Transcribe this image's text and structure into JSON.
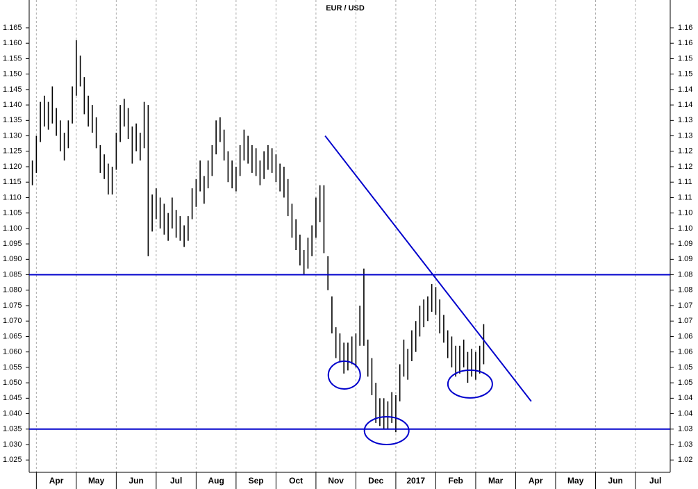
{
  "chart_data": {
    "type": "highlow",
    "title": "EUR / USD",
    "color": "#000000",
    "line_color": "#0000cc",
    "grid": true,
    "xlim": [
      -0.18,
      15.87
    ],
    "ylim": [
      1.021,
      1.174
    ],
    "y2lim": [
      1.021,
      1.174
    ],
    "xticks": [
      {
        "value": 0,
        "label": "Apr"
      },
      {
        "value": 1,
        "label": "May"
      },
      {
        "value": 2,
        "label": "Jun"
      },
      {
        "value": 3,
        "label": "Jul"
      },
      {
        "value": 4,
        "label": "Aug"
      },
      {
        "value": 5,
        "label": "Sep"
      },
      {
        "value": 6,
        "label": "Oct"
      },
      {
        "value": 7,
        "label": "Nov"
      },
      {
        "value": 8,
        "label": "Dec"
      },
      {
        "value": 9,
        "label": "2017"
      },
      {
        "value": 10,
        "label": "Feb"
      },
      {
        "value": 11,
        "label": "Mar"
      },
      {
        "value": 12,
        "label": "Apr"
      },
      {
        "value": 13,
        "label": "May"
      },
      {
        "value": 14,
        "label": "Jun"
      },
      {
        "value": 15,
        "label": "Jul"
      }
    ],
    "yticks": [
      1.165,
      {
        "value": 1.16,
        "label": "1.160"
      },
      1.155,
      {
        "value": 1.15,
        "label": "1.150"
      },
      1.145,
      {
        "value": 1.14,
        "label": "1.140"
      },
      1.135,
      {
        "value": 1.13,
        "label": "1.130"
      },
      1.125,
      {
        "value": 1.12,
        "label": "1.120"
      },
      1.115,
      {
        "value": 1.11,
        "label": "1.110"
      },
      1.105,
      {
        "value": 1.1,
        "label": "1.100"
      },
      1.095,
      {
        "value": 1.09,
        "label": "1.090"
      },
      1.085,
      {
        "value": 1.08,
        "label": "1.080"
      },
      1.075,
      {
        "value": 1.07,
        "label": "1.070"
      },
      1.065,
      {
        "value": 1.06,
        "label": "1.060"
      },
      1.055,
      {
        "value": 1.05,
        "label": "1.050"
      },
      1.045,
      {
        "value": 1.04,
        "label": "1.040"
      },
      1.035,
      {
        "value": 1.03,
        "label": "1.030"
      },
      1.025
    ],
    "y2ticks": [
      {
        "value": 1.165,
        "label": "1.16"
      },
      1.16,
      {
        "value": 1.155,
        "label": "1.15"
      },
      1.15,
      {
        "value": 1.145,
        "label": "1.14"
      },
      1.14,
      {
        "value": 1.135,
        "label": "1.13"
      },
      1.13,
      {
        "value": 1.125,
        "label": "1.12"
      },
      1.12,
      {
        "value": 1.115,
        "label": "1.11"
      },
      1.11,
      {
        "value": 1.105,
        "label": "1.10"
      },
      {
        "value": 1.1,
        "label": "1.10"
      },
      {
        "value": 1.095,
        "label": "1.09"
      },
      1.09,
      {
        "value": 1.085,
        "label": "1.08"
      },
      1.08,
      {
        "value": 1.075,
        "label": "1.07"
      },
      1.07,
      {
        "value": 1.065,
        "label": "1.06"
      },
      1.06,
      {
        "value": 1.055,
        "label": "1.05"
      },
      1.05,
      {
        "value": 1.045,
        "label": "1.04"
      },
      1.04,
      {
        "value": 1.035,
        "label": "1.03"
      },
      1.03,
      {
        "value": 1.025,
        "label": "1.02"
      }
    ],
    "x": [
      -0.1,
      0,
      0.1,
      0.2,
      0.3,
      0.4,
      0.5,
      0.6,
      0.7,
      0.8,
      0.9,
      1,
      1.1,
      1.2,
      1.3,
      1.4,
      1.5,
      1.6,
      1.7,
      1.8,
      1.9,
      2,
      2.1,
      2.2,
      2.3,
      2.4,
      2.5,
      2.6,
      2.7,
      2.8,
      2.9,
      3,
      3.1,
      3.2,
      3.3,
      3.4,
      3.5,
      3.6,
      3.7,
      3.8,
      3.9,
      4,
      4.1,
      4.2,
      4.3,
      4.4,
      4.5,
      4.6,
      4.7,
      4.8,
      4.9,
      5,
      5.1,
      5.2,
      5.3,
      5.4,
      5.5,
      5.6,
      5.7,
      5.8,
      5.9,
      6,
      6.1,
      6.2,
      6.3,
      6.4,
      6.5,
      6.6,
      6.7,
      6.8,
      6.9,
      7,
      7.1,
      7.2,
      7.3,
      7.4,
      7.5,
      7.6,
      7.7,
      7.8,
      7.9,
      8,
      8.1,
      8.2,
      8.3,
      8.4,
      8.5,
      8.6,
      8.7,
      8.8,
      8.9,
      9,
      9.1,
      9.2,
      9.3,
      9.4,
      9.5,
      9.6,
      9.7,
      9.8,
      9.9,
      10,
      10.1,
      10.2,
      10.3,
      10.4,
      10.5,
      10.6,
      10.7,
      10.8,
      10.9,
      11,
      11.1,
      11.2
    ],
    "high": [
      1.122,
      1.13,
      1.141,
      1.143,
      1.141,
      1.146,
      1.139,
      1.135,
      1.131,
      1.135,
      1.146,
      1.161,
      1.156,
      1.149,
      1.143,
      1.14,
      1.136,
      1.127,
      1.124,
      1.121,
      1.12,
      1.131,
      1.14,
      1.142,
      1.139,
      1.133,
      1.134,
      1.131,
      1.141,
      1.14,
      1.111,
      1.113,
      1.11,
      1.108,
      1.105,
      1.11,
      1.106,
      1.104,
      1.101,
      1.104,
      1.113,
      1.116,
      1.122,
      1.117,
      1.122,
      1.127,
      1.135,
      1.136,
      1.132,
      1.125,
      1.122,
      1.12,
      1.127,
      1.132,
      1.13,
      1.127,
      1.126,
      1.122,
      1.125,
      1.127,
      1.126,
      1.124,
      1.121,
      1.12,
      1.116,
      1.108,
      1.103,
      1.098,
      1.093,
      1.097,
      1.101,
      1.11,
      1.114,
      1.114,
      1.091,
      1.078,
      1.068,
      1.066,
      1.063,
      1.063,
      1.065,
      1.066,
      1.075,
      1.087,
      1.064,
      1.058,
      1.05,
      1.045,
      1.045,
      1.044,
      1.047,
      1.046,
      1.056,
      1.064,
      1.061,
      1.067,
      1.07,
      1.075,
      1.077,
      1.078,
      1.082,
      1.081,
      1.077,
      1.072,
      1.067,
      1.065,
      1.062,
      1.062,
      1.064,
      1.06,
      1.061,
      1.06,
      1.062,
      1.069
    ],
    "low": [
      1.114,
      1.118,
      1.128,
      1.133,
      1.132,
      1.134,
      1.13,
      1.125,
      1.122,
      1.126,
      1.134,
      1.143,
      1.146,
      1.137,
      1.133,
      1.131,
      1.126,
      1.118,
      1.116,
      1.111,
      1.111,
      1.119,
      1.128,
      1.133,
      1.129,
      1.121,
      1.125,
      1.122,
      1.126,
      1.091,
      1.099,
      1.103,
      1.1,
      1.098,
      1.096,
      1.1,
      1.097,
      1.096,
      1.094,
      1.096,
      1.103,
      1.107,
      1.112,
      1.108,
      1.113,
      1.117,
      1.124,
      1.128,
      1.122,
      1.115,
      1.113,
      1.112,
      1.117,
      1.122,
      1.121,
      1.118,
      1.117,
      1.114,
      1.116,
      1.119,
      1.118,
      1.115,
      1.112,
      1.11,
      1.104,
      1.097,
      1.093,
      1.088,
      1.085,
      1.087,
      1.091,
      1.097,
      1.102,
      1.092,
      1.08,
      1.066,
      1.058,
      1.057,
      1.053,
      1.054,
      1.056,
      1.055,
      1.062,
      1.062,
      1.052,
      1.046,
      1.037,
      1.036,
      1.035,
      1.035,
      1.037,
      1.034,
      1.044,
      1.052,
      1.051,
      1.057,
      1.06,
      1.065,
      1.068,
      1.07,
      1.073,
      1.072,
      1.066,
      1.063,
      1.058,
      1.055,
      1.052,
      1.053,
      1.055,
      1.05,
      1.052,
      1.051,
      1.053,
      1.056
    ],
    "hlines": [
      1.085,
      1.035
    ],
    "trendline": {
      "x": [
        7.23,
        12.39
      ],
      "y": [
        1.13,
        1.044
      ]
    },
    "circled_lows": {
      "x": [
        7.71,
        8.77,
        10.86
      ],
      "y": [
        1.0525,
        1.0345,
        1.0496
      ]
    }
  }
}
